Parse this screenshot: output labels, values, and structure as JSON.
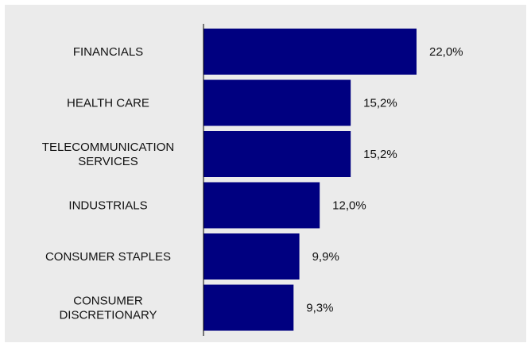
{
  "chart_data": {
    "type": "bar",
    "orientation": "horizontal",
    "categories": [
      "FINANCIALS",
      "HEALTH CARE",
      "TELECOMMUNICATION SERVICES",
      "INDUSTRIALS",
      "CONSUMER STAPLES",
      "CONSUMER DISCRETIONARY"
    ],
    "category_lines": [
      [
        "FINANCIALS"
      ],
      [
        "HEALTH CARE"
      ],
      [
        "TELECOMMUNICATION",
        "SERVICES"
      ],
      [
        "INDUSTRIALS"
      ],
      [
        "CONSUMER STAPLES"
      ],
      [
        "CONSUMER",
        "DISCRETIONARY"
      ]
    ],
    "values": [
      22.0,
      15.2,
      15.2,
      12.0,
      9.9,
      9.3
    ],
    "value_labels": [
      "22,0%",
      "15,2%",
      "15,2%",
      "12,0%",
      "9,9%",
      "9,3%"
    ],
    "title": "",
    "xlabel": "",
    "ylabel": "",
    "xlim": [
      0,
      22
    ],
    "grid": false,
    "legend": false,
    "colors": {
      "bar": "#000080",
      "background": "#ebebeb",
      "axis": "#000000"
    }
  }
}
